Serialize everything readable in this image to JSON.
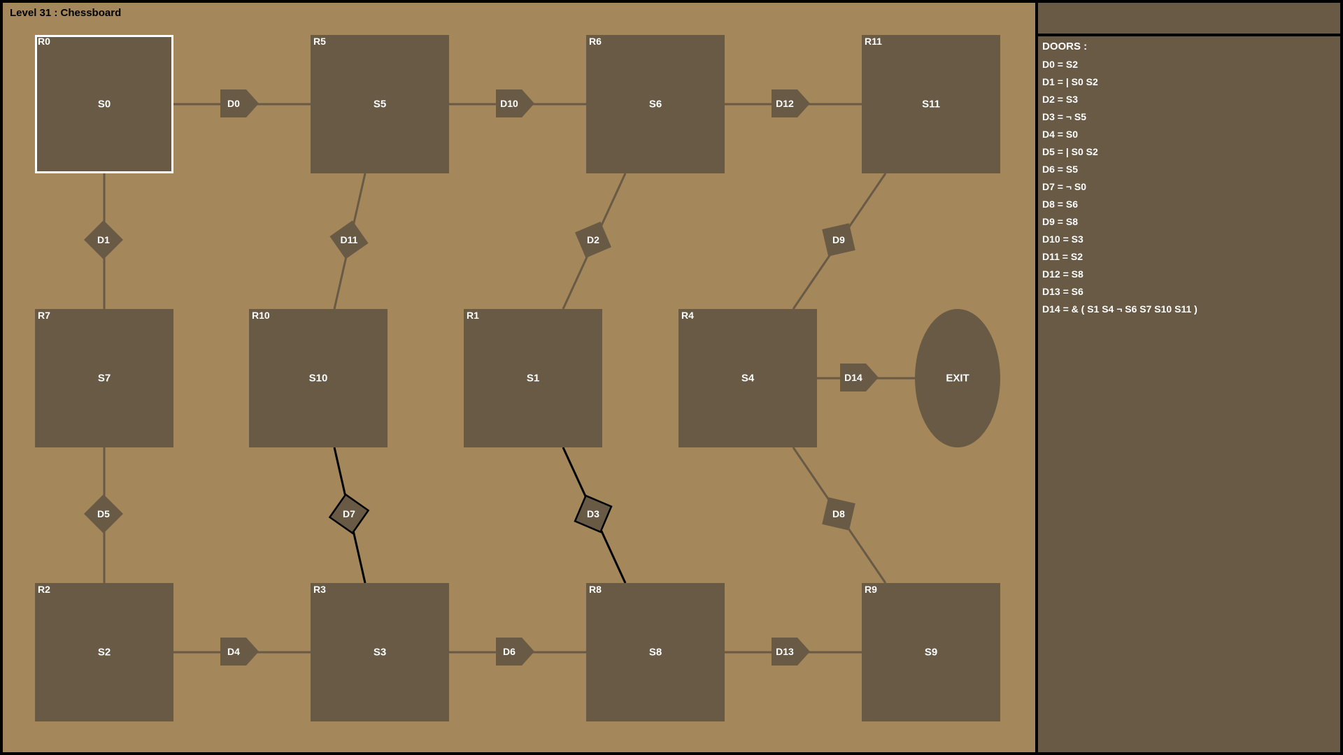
{
  "level_title": "Level 31 : Chessboard",
  "side_panel": {
    "doors_title": "DOORS :",
    "doors": [
      "D0 = S2",
      "D1 = | S0 S2",
      "D2 = S3",
      "D3 = ¬ S5",
      "D4 = S0",
      "D5 = | S0 S2",
      "D6 = S5",
      "D7 = ¬ S0",
      "D8 = S6",
      "D9 = S8",
      "D10 = S3",
      "D11 = S2",
      "D12 = S8",
      "D13 = S6",
      "D14 = & ( S1 S4 ¬ S6 S7 S10 S11 )"
    ]
  },
  "rooms": [
    {
      "id": "R0",
      "switch": "S0",
      "selected": true
    },
    {
      "id": "R5",
      "switch": "S5"
    },
    {
      "id": "R6",
      "switch": "S6"
    },
    {
      "id": "R11",
      "switch": "S11"
    },
    {
      "id": "R7",
      "switch": "S7"
    },
    {
      "id": "R10",
      "switch": "S10"
    },
    {
      "id": "R1",
      "switch": "S1"
    },
    {
      "id": "R4",
      "switch": "S4"
    },
    {
      "id": "R2",
      "switch": "S2"
    },
    {
      "id": "R3",
      "switch": "S3"
    },
    {
      "id": "R8",
      "switch": "S8"
    },
    {
      "id": "R9",
      "switch": "S9"
    }
  ],
  "exit_label": "EXIT",
  "doors": [
    {
      "id": "D0",
      "open": false
    },
    {
      "id": "D10",
      "open": false
    },
    {
      "id": "D12",
      "open": false
    },
    {
      "id": "D1",
      "open": false
    },
    {
      "id": "D11",
      "open": false
    },
    {
      "id": "D2",
      "open": false
    },
    {
      "id": "D9",
      "open": false
    },
    {
      "id": "D14",
      "open": false
    },
    {
      "id": "D5",
      "open": false
    },
    {
      "id": "D7",
      "open": true
    },
    {
      "id": "D3",
      "open": true
    },
    {
      "id": "D8",
      "open": false
    },
    {
      "id": "D4",
      "open": false
    },
    {
      "id": "D6",
      "open": false
    },
    {
      "id": "D13",
      "open": false
    }
  ],
  "colors": {
    "floor": "#a4875a",
    "room": "#685a45",
    "open_line": "#000000",
    "closed_line": "#685a45",
    "selection": "#ffffff",
    "text": "#ffffff"
  }
}
